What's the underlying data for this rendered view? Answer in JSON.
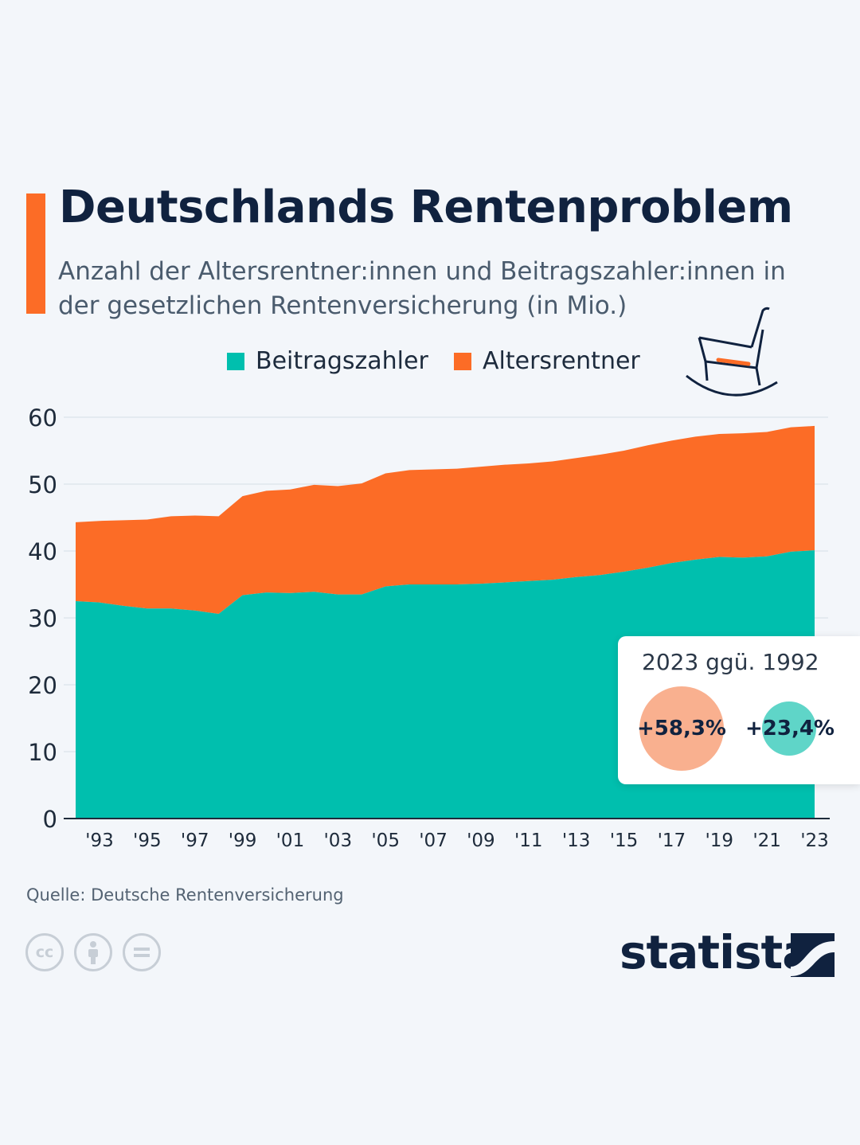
{
  "header": {
    "title": "Deutschlands Rentenproblem",
    "subtitle": "Anzahl der Altersrentner:innen und Beitragszahler:innen in der gesetzlichen Rentenversicherung (in Mio.)"
  },
  "legend": {
    "items": [
      {
        "label": "Beitragszahler",
        "color": "#00bfae"
      },
      {
        "label": "Altersrentner",
        "color": "#fc6c26"
      }
    ]
  },
  "icons": {
    "illustration": "rocking-chair-icon",
    "license": [
      "cc-icon",
      "by-icon",
      "nd-icon"
    ],
    "brand_logo": "statista-logo-icon"
  },
  "chart_data": {
    "type": "area",
    "stacked": true,
    "x": [
      1992,
      1993,
      1994,
      1995,
      1996,
      1997,
      1998,
      1999,
      2000,
      2001,
      2002,
      2003,
      2004,
      2005,
      2006,
      2007,
      2008,
      2009,
      2010,
      2011,
      2012,
      2013,
      2014,
      2015,
      2016,
      2017,
      2018,
      2019,
      2020,
      2021,
      2022,
      2023
    ],
    "x_tick_labels": [
      "'93",
      "'95",
      "'97",
      "'99",
      "'01",
      "'03",
      "'05",
      "'07",
      "'09",
      "'11",
      "'13",
      "'15",
      "'17",
      "'19",
      "'21",
      "'23"
    ],
    "x_tick_years": [
      1993,
      1995,
      1997,
      1999,
      2001,
      2003,
      2005,
      2007,
      2009,
      2011,
      2013,
      2015,
      2017,
      2019,
      2021,
      2023
    ],
    "ylim": [
      0,
      60
    ],
    "y_ticks": [
      0,
      10,
      20,
      30,
      40,
      50,
      60
    ],
    "grid": true,
    "legend_position": "top-center",
    "series": [
      {
        "name": "Beitragszahler",
        "color": "#00bfae",
        "values": [
          32.5,
          32.3,
          31.8,
          31.4,
          31.4,
          31.1,
          30.6,
          33.4,
          33.8,
          33.7,
          33.9,
          33.5,
          33.5,
          34.7,
          35.0,
          35.0,
          35.0,
          35.1,
          35.3,
          35.5,
          35.7,
          36.1,
          36.4,
          36.9,
          37.5,
          38.2,
          38.7,
          39.1,
          39.0,
          39.2,
          39.9,
          40.1
        ]
      },
      {
        "name": "Altersrentner",
        "color": "#fc6c26",
        "values": [
          11.8,
          12.2,
          12.8,
          13.3,
          13.8,
          14.2,
          14.6,
          14.8,
          15.2,
          15.5,
          16.0,
          16.2,
          16.6,
          16.9,
          17.1,
          17.2,
          17.3,
          17.5,
          17.6,
          17.6,
          17.7,
          17.8,
          18.0,
          18.1,
          18.3,
          18.3,
          18.4,
          18.4,
          18.6,
          18.6,
          18.6,
          18.6
        ]
      }
    ]
  },
  "callout": {
    "title": "2023 ggü. 1992",
    "orange_value": "+58,3%",
    "teal_value": "+23,4%"
  },
  "footer": {
    "source": "Quelle: Deutsche Rentenversicherung",
    "cc_label": "cc",
    "brand": "statista"
  }
}
